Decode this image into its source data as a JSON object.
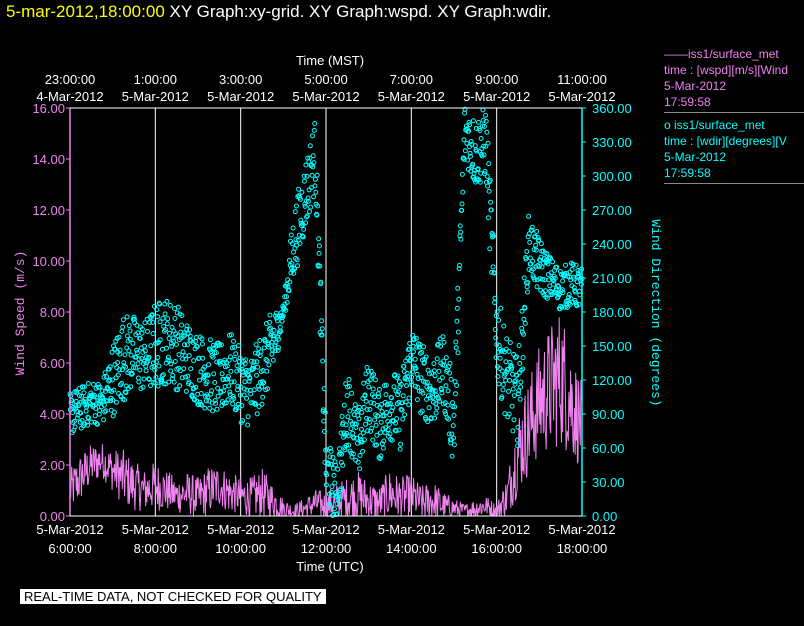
{
  "title": {
    "date": "5-mar-2012,18:00:00",
    "rest": "XY Graph:xy-grid.  XY Graph:wspd.  XY Graph:wdir."
  },
  "legend": {
    "wspd": {
      "line": "——iss1/surface_met",
      "field": "time : [wspd][m/s][Wind",
      "date": "5-Mar-2012",
      "time": "17:59:58",
      "color": "#ee82ee"
    },
    "wdir": {
      "line": "o  iss1/surface_met",
      "field": "time : [wdir][degrees][V",
      "date": "5-Mar-2012",
      "time": "17:59:58",
      "color": "#00ffff"
    }
  },
  "footer": "REAL-TIME DATA, NOT CHECKED FOR QUALITY",
  "chart_data": {
    "type": "line",
    "x_top_label": "Time (MST)",
    "x_top_ticks": [
      {
        "date": "4-Mar-2012",
        "time": "23:00:00"
      },
      {
        "date": "5-Mar-2012",
        "time": "1:00:00"
      },
      {
        "date": "5-Mar-2012",
        "time": "3:00:00"
      },
      {
        "date": "5-Mar-2012",
        "time": "5:00:00"
      },
      {
        "date": "5-Mar-2012",
        "time": "7:00:00"
      },
      {
        "date": "5-Mar-2012",
        "time": "9:00:00"
      },
      {
        "date": "5-Mar-2012",
        "time": "11:00:00"
      }
    ],
    "x_bottom_label": "Time (UTC)",
    "x_bottom_ticks": [
      {
        "date": "5-Mar-2012",
        "time": "6:00:00"
      },
      {
        "date": "5-Mar-2012",
        "time": "8:00:00"
      },
      {
        "date": "5-Mar-2012",
        "time": "10:00:00"
      },
      {
        "date": "5-Mar-2012",
        "time": "12:00:00"
      },
      {
        "date": "5-Mar-2012",
        "time": "14:00:00"
      },
      {
        "date": "5-Mar-2012",
        "time": "16:00:00"
      },
      {
        "date": "5-Mar-2012",
        "time": "18:00:00"
      }
    ],
    "xlim_utc_hours": [
      6,
      18
    ],
    "y_left": {
      "label": "Wind Speed (m/s)",
      "ylim": [
        0,
        16
      ],
      "ticks": [
        "0.00",
        "2.00",
        "4.00",
        "6.00",
        "8.00",
        "10.00",
        "12.00",
        "14.00",
        "16.00"
      ],
      "color": "#ee82ee"
    },
    "y_right": {
      "label": "Wind Direction (degrees)",
      "ylim": [
        0,
        360
      ],
      "ticks": [
        "0.00",
        "30.00",
        "60.00",
        "90.00",
        "120.00",
        "150.00",
        "180.00",
        "210.00",
        "240.00",
        "270.00",
        "300.00",
        "330.00",
        "360.00"
      ],
      "color": "#00ffff"
    },
    "grid": "vertical",
    "series": [
      {
        "name": "iss1/surface_met wspd",
        "style": "line",
        "color": "#ee82ee",
        "x": [
          6.0,
          6.25,
          6.5,
          6.75,
          7.0,
          7.25,
          7.5,
          7.75,
          8.0,
          8.25,
          8.5,
          8.75,
          9.0,
          9.25,
          9.5,
          9.75,
          10.0,
          10.25,
          10.5,
          10.75,
          11.0,
          11.25,
          11.5,
          11.75,
          12.0,
          12.25,
          12.5,
          12.75,
          13.0,
          13.25,
          13.5,
          13.75,
          14.0,
          14.25,
          14.5,
          14.75,
          15.0,
          15.25,
          15.5,
          15.75,
          16.0,
          16.25,
          16.5,
          16.75,
          17.0,
          17.25,
          17.5,
          17.75,
          18.0
        ],
        "y": [
          1.0,
          1.5,
          2.0,
          2.2,
          1.8,
          1.5,
          1.2,
          1.0,
          1.2,
          1.0,
          0.8,
          0.9,
          0.7,
          1.0,
          1.2,
          0.9,
          0.8,
          0.7,
          0.9,
          0.6,
          0.3,
          0.2,
          0.3,
          0.5,
          0.4,
          0.6,
          0.7,
          0.8,
          0.6,
          0.5,
          0.9,
          0.7,
          0.8,
          0.5,
          0.6,
          0.4,
          0.3,
          0.2,
          0.3,
          0.4,
          0.2,
          0.8,
          2.5,
          3.5,
          4.5,
          5.0,
          5.5,
          4.5,
          3.5
        ],
        "spread": [
          0.6,
          0.7,
          0.6,
          0.5,
          0.6,
          0.8,
          0.7,
          0.6,
          0.7,
          0.6,
          0.5,
          0.6,
          0.6,
          0.7,
          0.6,
          0.6,
          0.5,
          0.6,
          0.7,
          0.5,
          0.3,
          0.2,
          0.3,
          0.4,
          0.4,
          0.5,
          0.6,
          0.7,
          0.6,
          0.5,
          0.7,
          0.6,
          0.6,
          0.5,
          0.6,
          0.4,
          0.3,
          0.2,
          0.3,
          0.3,
          0.2,
          0.6,
          1.2,
          1.4,
          1.6,
          1.8,
          2.0,
          1.6,
          1.2
        ]
      },
      {
        "name": "iss1/surface_met wdir",
        "style": "markers",
        "color": "#00ffff",
        "x": [
          6.0,
          6.25,
          6.5,
          6.75,
          7.0,
          7.25,
          7.5,
          7.75,
          8.0,
          8.25,
          8.5,
          8.75,
          9.0,
          9.25,
          9.5,
          9.75,
          10.0,
          10.25,
          10.5,
          10.75,
          11.0,
          11.25,
          11.5,
          11.75,
          12.0,
          12.25,
          12.5,
          12.75,
          13.0,
          13.25,
          13.5,
          13.75,
          14.0,
          14.25,
          14.5,
          14.75,
          15.0,
          15.25,
          15.5,
          15.75,
          16.0,
          16.25,
          16.5,
          16.75,
          17.0,
          17.25,
          17.5,
          17.75,
          18.0
        ],
        "y": [
          90,
          95,
          100,
          100,
          120,
          140,
          145,
          140,
          150,
          155,
          150,
          140,
          130,
          125,
          120,
          130,
          115,
          110,
          130,
          150,
          180,
          240,
          280,
          320,
          40,
          20,
          100,
          60,
          110,
          80,
          100,
          90,
          140,
          120,
          110,
          130,
          80,
          340,
          320,
          330,
          160,
          120,
          100,
          240,
          220,
          210,
          200,
          205,
          200
        ],
        "spread": [
          15,
          15,
          15,
          15,
          25,
          30,
          25,
          25,
          30,
          30,
          30,
          25,
          25,
          25,
          25,
          25,
          25,
          25,
          25,
          25,
          5,
          25,
          25,
          25,
          25,
          20,
          25,
          25,
          25,
          25,
          25,
          25,
          25,
          25,
          25,
          25,
          30,
          20,
          25,
          25,
          30,
          30,
          30,
          20,
          20,
          15,
          15,
          15,
          15
        ]
      }
    ]
  }
}
